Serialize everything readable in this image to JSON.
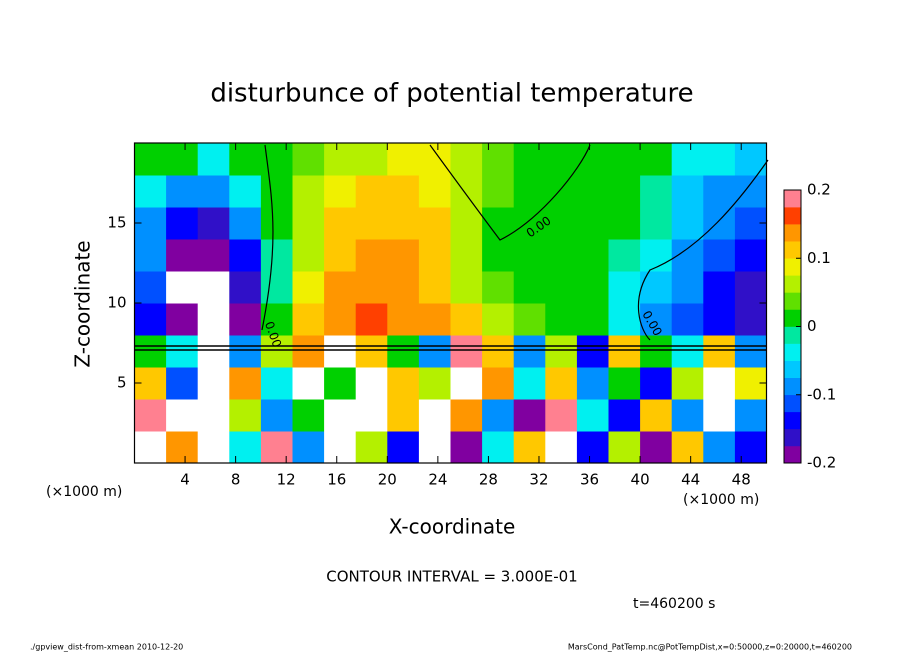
{
  "chart_data": {
    "type": "heatmap",
    "title": "disturbunce of potential temperature",
    "x_label": "X-coordinate",
    "y_label": "Z-coordinate",
    "x_unit": "(×1000 m)",
    "y_unit": "(×1000 m)",
    "x": [
      1.25,
      3.75,
      6.25,
      8.75,
      11.25,
      13.75,
      16.25,
      18.75,
      21.25,
      23.75,
      26.25,
      28.75,
      31.25,
      33.75,
      36.25,
      38.75,
      41.25,
      43.75,
      46.25,
      48.75
    ],
    "z": [
      1,
      3,
      5,
      7,
      9,
      11,
      13,
      15,
      17,
      19
    ],
    "values": [
      [
        -0.3,
        0.15,
        -0.3,
        -0.05,
        0.2,
        -0.1,
        -0.3,
        0.05,
        -0.15,
        0.25,
        -0.2,
        -0.05,
        0.1,
        0.25,
        -0.15,
        0.05,
        -0.2,
        0.1,
        -0.1,
        -0.15
      ],
      [
        0.2,
        -0.25,
        -0.3,
        0.05,
        -0.1,
        0.0,
        -0.3,
        -0.25,
        0.12,
        -0.3,
        0.15,
        -0.1,
        -0.2,
        0.18,
        -0.05,
        -0.15,
        0.1,
        -0.1,
        -0.3,
        -0.1
      ],
      [
        0.1,
        -0.12,
        -0.3,
        0.15,
        -0.05,
        0.25,
        0.0,
        -0.3,
        0.1,
        0.05,
        -0.25,
        0.15,
        -0.05,
        0.1,
        -0.1,
        0.0,
        -0.15,
        0.05,
        -0.3,
        0.08
      ],
      [
        0.0,
        -0.05,
        -0.3,
        -0.1,
        0.05,
        0.15,
        0.25,
        0.1,
        0.0,
        -0.1,
        0.2,
        0.1,
        -0.1,
        0.05,
        -0.15,
        0.1,
        0.0,
        -0.05,
        0.1,
        -0.1
      ],
      [
        -0.14,
        -0.2,
        -0.25,
        -0.18,
        0.0,
        0.1,
        0.15,
        0.16,
        0.15,
        0.13,
        0.1,
        0.05,
        0.03,
        0.02,
        0.01,
        -0.04,
        -0.08,
        -0.12,
        -0.15,
        -0.17
      ],
      [
        -0.12,
        -0.22,
        -0.25,
        -0.16,
        -0.02,
        0.08,
        0.13,
        0.15,
        0.14,
        0.12,
        0.07,
        0.03,
        0.02,
        0.01,
        0.0,
        -0.03,
        -0.06,
        -0.1,
        -0.13,
        -0.16
      ],
      [
        -0.1,
        -0.18,
        -0.2,
        -0.14,
        -0.02,
        0.07,
        0.12,
        0.14,
        0.13,
        0.11,
        0.06,
        0.02,
        0.01,
        0.01,
        0.01,
        -0.01,
        -0.04,
        -0.09,
        -0.12,
        -0.15
      ],
      [
        -0.08,
        -0.14,
        -0.16,
        -0.08,
        0.0,
        0.06,
        0.1,
        0.12,
        0.12,
        0.1,
        0.07,
        0.02,
        0.0,
        0.01,
        0.01,
        0.0,
        -0.02,
        -0.07,
        -0.1,
        -0.12
      ],
      [
        -0.05,
        -0.08,
        -0.1,
        -0.03,
        0.02,
        0.05,
        0.08,
        0.1,
        0.1,
        0.09,
        0.07,
        0.04,
        0.02,
        0.01,
        0.01,
        0.0,
        -0.02,
        -0.06,
        -0.09,
        -0.1
      ],
      [
        0.02,
        0.0,
        -0.03,
        0.01,
        0.02,
        0.03,
        0.06,
        0.07,
        0.08,
        0.08,
        0.06,
        0.04,
        0.02,
        0.02,
        0.01,
        0.01,
        0.0,
        -0.03,
        -0.05,
        -0.07
      ]
    ],
    "xlim": [
      0,
      50
    ],
    "xticks": [
      4,
      8,
      12,
      16,
      20,
      24,
      28,
      32,
      36,
      40,
      44,
      48
    ],
    "ylim": [
      0,
      20
    ],
    "yticks": [
      5,
      10,
      15
    ],
    "zlim": [
      -0.2,
      0.2
    ],
    "colorbar_ticks": [
      -0.2,
      -0.1,
      0,
      0.1,
      0.2
    ],
    "colors": [
      "#8000a0",
      "#3010c8",
      "#0000ff",
      "#0050ff",
      "#0090ff",
      "#00c8ff",
      "#00f0f0",
      "#00e8a0",
      "#00d000",
      "#60e000",
      "#b4f000",
      "#f0f000",
      "#ffc800",
      "#ff9600",
      "#ff4000",
      "#ff8090"
    ],
    "contour_labels": [
      "0.00",
      "0.00",
      "0.00"
    ],
    "contour_interval": "CONTOUR INTERVAL = 3.000E-01",
    "time_label": "t=460200 s",
    "footer_left": "./gpview_dist-from-xmean  2010-12-20",
    "footer_right": "MarsCond_PatTemp.nc@PotTempDist,x=0:50000,z=0:20000,t=460200"
  }
}
